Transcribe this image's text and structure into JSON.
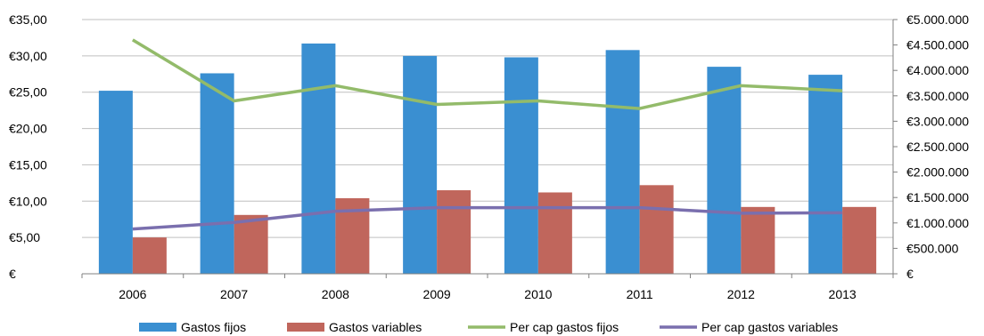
{
  "chart_data": {
    "type": "bar",
    "title": "",
    "xlabel": "",
    "ylabel": "",
    "categories": [
      "2006",
      "2007",
      "2008",
      "2009",
      "2010",
      "2011",
      "2012",
      "2013"
    ],
    "y_left": {
      "range": [
        0,
        35
      ],
      "tick_labels": [
        "€",
        "€5,00",
        "€10,00",
        "€15,00",
        "€20,00",
        "€25,00",
        "€30,00",
        "€35,00"
      ]
    },
    "y_right": {
      "range": [
        0,
        5000000
      ],
      "tick_labels": [
        "€",
        "€500.000",
        "€1.000.000",
        "€1.500.000",
        "€2.000.000",
        "€2.500.000",
        "€3.000.000",
        "€3.500.000",
        "€4.000.000",
        "€4.500.000",
        "€5.000.000"
      ]
    },
    "grid": "horizontal",
    "legend_position": "bottom",
    "series": [
      {
        "name": "Gastos fijos",
        "kind": "bar",
        "axis": "left",
        "color": "#3a8fd1",
        "values": [
          25.2,
          27.6,
          31.7,
          30.0,
          29.8,
          30.8,
          28.5,
          27.4
        ]
      },
      {
        "name": "Gastos variables",
        "kind": "bar",
        "axis": "left",
        "color": "#c0665c",
        "values": [
          5.0,
          8.1,
          10.4,
          11.5,
          11.2,
          12.2,
          9.2,
          9.2
        ]
      },
      {
        "name": "Per cap gastos fijos",
        "kind": "line",
        "axis": "right",
        "color": "#93bb6a",
        "values": [
          4600000,
          3400000,
          3700000,
          3330000,
          3400000,
          3250000,
          3700000,
          3600000
        ]
      },
      {
        "name": "Per cap gastos variables",
        "kind": "line",
        "axis": "right",
        "color": "#7a6fae",
        "values": [
          880000,
          1010000,
          1230000,
          1300000,
          1300000,
          1300000,
          1190000,
          1200000
        ]
      }
    ]
  }
}
